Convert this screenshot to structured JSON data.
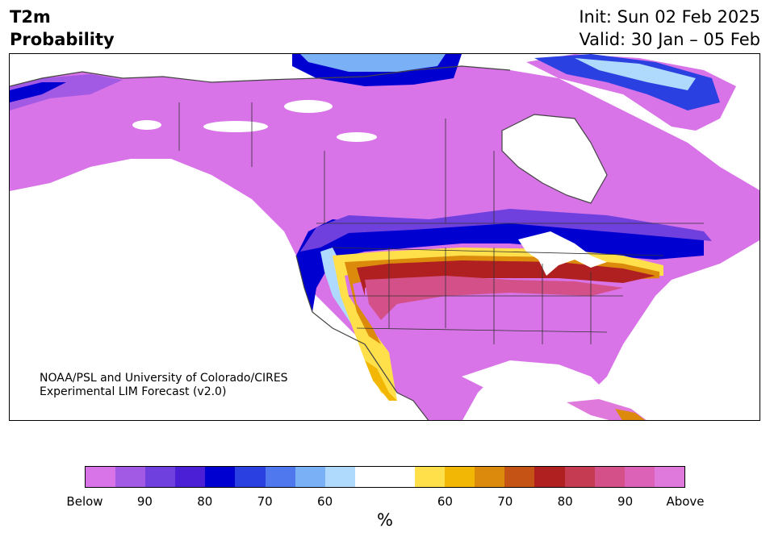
{
  "header": {
    "title_line1": "T2m",
    "title_line2": "Probability",
    "init": "Init: Sun 02 Feb 2025",
    "valid": "Valid: 30 Jan – 05 Feb"
  },
  "credit": {
    "line1": "NOAA/PSL and University of Colorado/CIRES",
    "line2": "Experimental LIM Forecast (v2.0)"
  },
  "colorbar": {
    "colors": [
      "#d873e8",
      "#a25ae5",
      "#7040de",
      "#4a1fd6",
      "#0000d0",
      "#2a40e0",
      "#4f78ee",
      "#7ab1f6",
      "#b0dafd",
      "#ffffff",
      "#ffffff",
      "#ffe04a",
      "#f2b705",
      "#dc8a0c",
      "#c65316",
      "#b02020",
      "#c43b52",
      "#d45088",
      "#dc62b8",
      "#e079dc"
    ],
    "tick_labels": [
      "Below",
      "90",
      "80",
      "70",
      "60",
      "60",
      "70",
      "80",
      "90",
      "Above"
    ],
    "unit": "%"
  },
  "map": {
    "palette": {
      "below": "#d873e8",
      "cold_mid": "#a25ae5",
      "cold_strong": "#0000d0",
      "cold_light": "#7ab1f6",
      "neutral": "#ffffff",
      "warm_light": "#ffe04a",
      "warm_mid": "#dc8a0c",
      "warm_strong": "#b02020",
      "warm_high": "#d45088",
      "above": "#e079dc"
    }
  }
}
